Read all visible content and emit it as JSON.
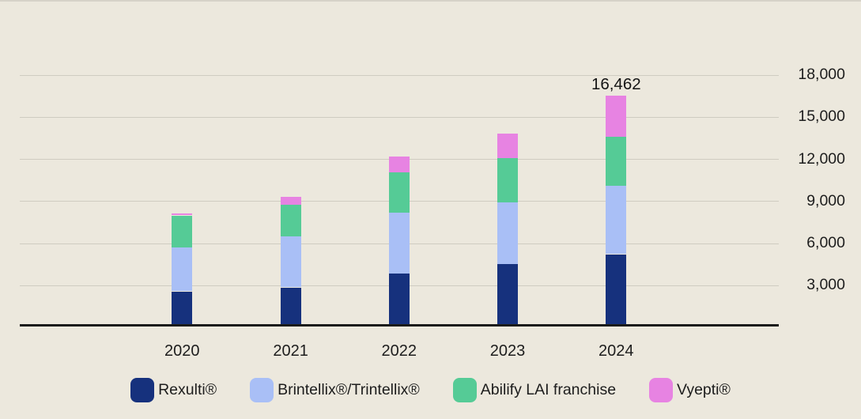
{
  "chart_data": {
    "type": "bar",
    "stacked": true,
    "title": "",
    "xlabel": "",
    "ylabel": "",
    "grid": "horizontal",
    "legend_position": "bottom",
    "categories": [
      "2020",
      "2021",
      "2022",
      "2023",
      "2024"
    ],
    "series": [
      {
        "key": "rexulti",
        "name": "Rexulti®",
        "color": "#16317d",
        "values": [
          2510,
          2790,
          3800,
          4480,
          5160
        ]
      },
      {
        "key": "brintellix-trintellix",
        "name": "Brintellix®/Trintellix®",
        "color": "#a9bff6",
        "values": [
          3110,
          3630,
          4340,
          4350,
          4860
        ]
      },
      {
        "key": "abilify-lai-franchise",
        "name": "Abilify LAI franchise",
        "color": "#55cb96",
        "values": [
          2300,
          2270,
          2870,
          3160,
          3535
        ]
      },
      {
        "key": "vyepti",
        "name": "Vyepti®",
        "color": "#e783e2",
        "values": [
          150,
          530,
          1090,
          1760,
          2907
        ]
      }
    ],
    "ylim": [
      0,
      18000
    ],
    "yticks": [
      3000,
      6000,
      9000,
      12000,
      15000,
      18000
    ],
    "ytick_labels": [
      "3,000",
      "6,000",
      "9,000",
      "12,000",
      "15,000",
      "18,000"
    ],
    "annotations": [
      {
        "category": "2024",
        "text": "16,462",
        "value": 16462
      }
    ]
  },
  "colors": {
    "background": "#ece8dd",
    "gridline": "#cfccc1",
    "axis_line": "#1b1b1b",
    "text": "#1d1d1d"
  }
}
